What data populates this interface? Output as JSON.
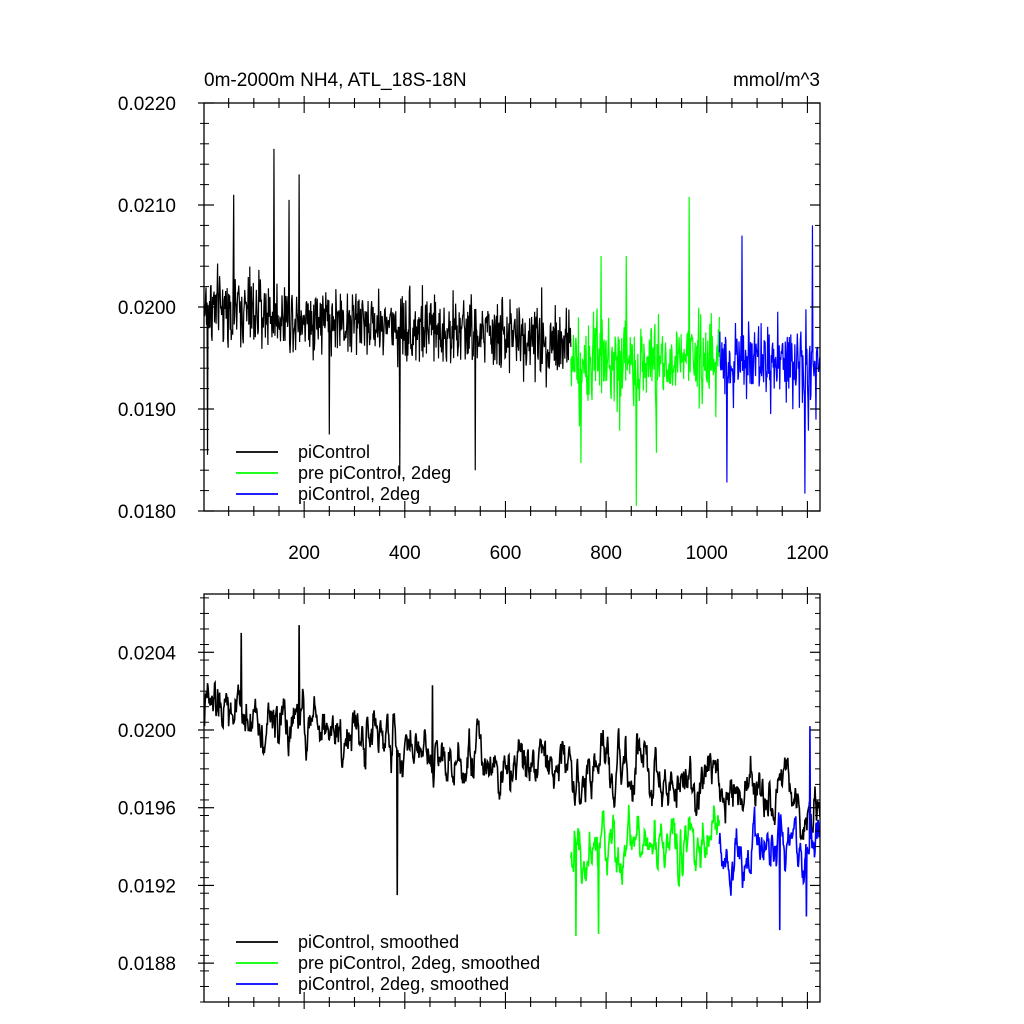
{
  "chart_data": [
    {
      "type": "line",
      "title_left": "0m-2000m NH4, ATL_18S-18N",
      "title_right": "mmol/m^3",
      "xlim": [
        1,
        1225
      ],
      "ylim": [
        0.018,
        0.022
      ],
      "x_ticks": [
        200,
        400,
        600,
        800,
        1000,
        1200
      ],
      "y_ticks": [
        "0.0180",
        "0.0190",
        "0.0200",
        "0.0210",
        "0.0220"
      ],
      "y_tick_values": [
        0.018,
        0.019,
        0.02,
        0.021,
        0.022
      ],
      "legend_position": "bottom-left",
      "series": [
        {
          "name": "piControl",
          "color": "#000000",
          "x_range": [
            1,
            730
          ],
          "base_start": 0.02,
          "base_end": 0.01965,
          "noise": 0.00045,
          "spikes": [
            [
              8,
              0.01855
            ],
            [
              140,
              0.02155
            ],
            [
              190,
              0.0213
            ],
            [
              250,
              0.01875
            ],
            [
              390,
              0.01835
            ],
            [
              540,
              0.0184
            ],
            [
              60,
              0.0211
            ],
            [
              170,
              0.02105
            ]
          ]
        },
        {
          "name": "pre piControl, 2deg",
          "color": "#00ff00",
          "x_range": [
            730,
            1025
          ],
          "base_start": 0.01945,
          "base_end": 0.01945,
          "noise": 0.00055,
          "spikes": [
            [
              860,
              0.01805
            ],
            [
              965,
              0.02108
            ],
            [
              790,
              0.0205
            ],
            [
              840,
              0.0205
            ],
            [
              750,
              0.01847
            ],
            [
              900,
              0.01857
            ]
          ]
        },
        {
          "name": "piControl, 2deg",
          "color": "#0000ff",
          "x_range": [
            1025,
            1225
          ],
          "base_start": 0.0195,
          "base_end": 0.0194,
          "noise": 0.00055,
          "spikes": [
            [
              1195,
              0.01817
            ],
            [
              1210,
              0.0208
            ],
            [
              1070,
              0.0207
            ],
            [
              1040,
              0.01828
            ]
          ]
        }
      ]
    },
    {
      "type": "line",
      "xlim": [
        1,
        1225
      ],
      "ylim": [
        0.0186,
        0.0207
      ],
      "y_ticks": [
        "0.0188",
        "0.0192",
        "0.0196",
        "0.0200",
        "0.0204"
      ],
      "y_tick_values": [
        0.0188,
        0.0192,
        0.0196,
        0.02,
        0.0204
      ],
      "legend_position": "bottom-left",
      "series": [
        {
          "name": "piControl, smoothed",
          "color": "#000000",
          "x_range": [
            1,
            1225
          ],
          "base_start": 0.0201,
          "base_end": 0.0196,
          "noise": 0.0002,
          "spikes": [
            [
              75,
              0.0205
            ],
            [
              190,
              0.02054
            ],
            [
              385,
              0.01915
            ],
            [
              455,
              0.02023
            ],
            [
              1205,
              0.0195
            ]
          ]
        },
        {
          "name": "pre piControl, 2deg, smoothed",
          "color": "#00ff00",
          "x_range": [
            730,
            1025
          ],
          "base_start": 0.0194,
          "base_end": 0.01945,
          "noise": 0.00022,
          "spikes": [
            [
              740,
              0.01894
            ],
            [
              785,
              0.01895
            ]
          ]
        },
        {
          "name": "piControl, 2deg, smoothed",
          "color": "#0000ff",
          "x_range": [
            1025,
            1225
          ],
          "base_start": 0.0194,
          "base_end": 0.0194,
          "noise": 0.0002,
          "spikes": [
            [
              1145,
              0.01897
            ],
            [
              1205,
              0.02002
            ],
            [
              1198,
              0.01904
            ]
          ]
        }
      ]
    }
  ]
}
